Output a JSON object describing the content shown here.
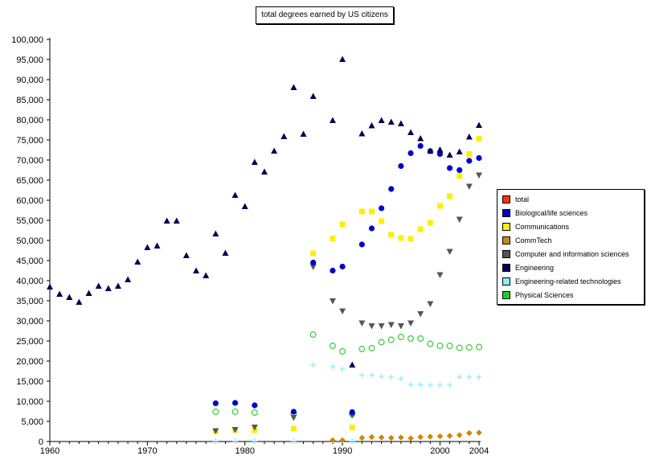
{
  "chart_data": {
    "type": "scatter",
    "title": "total degrees earned by US citizens",
    "xlabel": "",
    "ylabel": "",
    "xlim": [
      1960,
      2004
    ],
    "ylim": [
      0,
      100000
    ],
    "x_ticks": [
      "1960",
      "1970",
      "1980",
      "1990",
      "2000",
      "2004"
    ],
    "x_tick_values": [
      1960,
      1970,
      1980,
      1990,
      2000,
      2004
    ],
    "y_ticks": [
      "0",
      "5,000",
      "10,000",
      "15,000",
      "20,000",
      "25,000",
      "30,000",
      "35,000",
      "40,000",
      "45,000",
      "50,000",
      "55,000",
      "60,000",
      "65,000",
      "70,000",
      "75,000",
      "80,000",
      "85,000",
      "90,000",
      "95,000",
      "100,000"
    ],
    "y_tick_values": [
      0,
      5000,
      10000,
      15000,
      20000,
      25000,
      30000,
      35000,
      40000,
      45000,
      50000,
      55000,
      60000,
      65000,
      70000,
      75000,
      80000,
      85000,
      90000,
      95000,
      100000
    ],
    "legend_position": "right",
    "series": [
      {
        "name": "total",
        "color": "#ff3300",
        "marker": "square",
        "points": []
      },
      {
        "name": "Biological/life sciences",
        "color": "#0000cc",
        "marker": "circle",
        "points": [
          [
            1977,
            9500
          ],
          [
            1979,
            9600
          ],
          [
            1981,
            9000
          ],
          [
            1985,
            7400
          ],
          [
            1987,
            44500
          ],
          [
            1989,
            42500
          ],
          [
            1990,
            43500
          ],
          [
            1991,
            7300
          ],
          [
            1992,
            49000
          ],
          [
            1993,
            53000
          ],
          [
            1994,
            58000
          ],
          [
            1995,
            62800
          ],
          [
            1996,
            68500
          ],
          [
            1997,
            71700
          ],
          [
            1998,
            73500
          ],
          [
            1999,
            72200
          ],
          [
            2000,
            71500
          ],
          [
            2001,
            68000
          ],
          [
            2002,
            67500
          ],
          [
            2003,
            69800
          ],
          [
            2004,
            70500
          ]
        ]
      },
      {
        "name": "Communications",
        "color": "#ffee00",
        "marker": "square",
        "points": [
          [
            1977,
            2600
          ],
          [
            1979,
            2900
          ],
          [
            1981,
            2800
          ],
          [
            1985,
            3200
          ],
          [
            1987,
            46800
          ],
          [
            1989,
            50500
          ],
          [
            1990,
            54000
          ],
          [
            1991,
            3500
          ],
          [
            1992,
            57200
          ],
          [
            1993,
            57200
          ],
          [
            1994,
            54800
          ],
          [
            1995,
            51400
          ],
          [
            1996,
            50600
          ],
          [
            1997,
            50400
          ],
          [
            1998,
            52800
          ],
          [
            1999,
            54400
          ],
          [
            2000,
            58600
          ],
          [
            2001,
            61000
          ],
          [
            2002,
            66000
          ],
          [
            2003,
            71500
          ],
          [
            2004,
            75300
          ]
        ]
      },
      {
        "name": "CommTech",
        "color": "#cc8800",
        "marker": "diamond",
        "points": [
          [
            1989,
            300
          ],
          [
            1990,
            300
          ],
          [
            1992,
            900
          ],
          [
            1993,
            1100
          ],
          [
            1994,
            1000
          ],
          [
            1995,
            900
          ],
          [
            1996,
            1000
          ],
          [
            1997,
            800
          ],
          [
            1998,
            1100
          ],
          [
            1999,
            1200
          ],
          [
            2000,
            1300
          ],
          [
            2001,
            1400
          ],
          [
            2002,
            1600
          ],
          [
            2003,
            2100
          ],
          [
            2004,
            2200
          ]
        ]
      },
      {
        "name": "Computer and information sciences",
        "color": "#555555",
        "marker": "triangle-down",
        "points": [
          [
            1977,
            2700
          ],
          [
            1979,
            3000
          ],
          [
            1981,
            3600
          ],
          [
            1985,
            6000
          ],
          [
            1987,
            43500
          ],
          [
            1989,
            35000
          ],
          [
            1990,
            32500
          ],
          [
            1991,
            6600
          ],
          [
            1992,
            29500
          ],
          [
            1993,
            28800
          ],
          [
            1994,
            28800
          ],
          [
            1995,
            29100
          ],
          [
            1996,
            28800
          ],
          [
            1997,
            29500
          ],
          [
            1998,
            31800
          ],
          [
            1999,
            34300
          ],
          [
            2000,
            41500
          ],
          [
            2001,
            47300
          ],
          [
            2002,
            55300
          ],
          [
            2003,
            63500
          ],
          [
            2004,
            66300
          ]
        ]
      },
      {
        "name": "Engineering",
        "color": "#000055",
        "marker": "triangle-up",
        "points": [
          [
            1960,
            38400
          ],
          [
            1961,
            36600
          ],
          [
            1962,
            35800
          ],
          [
            1963,
            34600
          ],
          [
            1964,
            36800
          ],
          [
            1965,
            38600
          ],
          [
            1966,
            38000
          ],
          [
            1967,
            38600
          ],
          [
            1968,
            40200
          ],
          [
            1969,
            44600
          ],
          [
            1970,
            48200
          ],
          [
            1971,
            48600
          ],
          [
            1972,
            54800
          ],
          [
            1973,
            54800
          ],
          [
            1974,
            46200
          ],
          [
            1975,
            42400
          ],
          [
            1976,
            41200
          ],
          [
            1977,
            51600
          ],
          [
            1978,
            46800
          ],
          [
            1979,
            61200
          ],
          [
            1980,
            58400
          ],
          [
            1981,
            69400
          ],
          [
            1982,
            67000
          ],
          [
            1983,
            72200
          ],
          [
            1984,
            75800
          ],
          [
            1985,
            88000
          ],
          [
            1986,
            76400
          ],
          [
            1987,
            85800
          ],
          [
            1989,
            79800
          ],
          [
            1990,
            95000
          ],
          [
            1991,
            19000
          ],
          [
            1992,
            76500
          ],
          [
            1993,
            78500
          ],
          [
            1994,
            79800
          ],
          [
            1995,
            79400
          ],
          [
            1996,
            79000
          ],
          [
            1997,
            76800
          ],
          [
            1998,
            75300
          ],
          [
            1999,
            72200
          ],
          [
            2000,
            72500
          ],
          [
            2001,
            71200
          ],
          [
            2002,
            72000
          ],
          [
            2003,
            75700
          ],
          [
            2004,
            78600
          ]
        ]
      },
      {
        "name": "Engineering-related technologies",
        "color": "#88eeff",
        "marker": "plus",
        "points": [
          [
            1977,
            100
          ],
          [
            1979,
            100
          ],
          [
            1981,
            100
          ],
          [
            1985,
            100
          ],
          [
            1987,
            19000
          ],
          [
            1989,
            18600
          ],
          [
            1990,
            18000
          ],
          [
            1991,
            100
          ],
          [
            1992,
            16500
          ],
          [
            1993,
            16500
          ],
          [
            1994,
            16200
          ],
          [
            1995,
            16000
          ],
          [
            1996,
            15600
          ],
          [
            1997,
            14200
          ],
          [
            1998,
            14200
          ],
          [
            1999,
            14000
          ],
          [
            2000,
            14000
          ],
          [
            2001,
            14000
          ],
          [
            2002,
            16000
          ],
          [
            2003,
            16000
          ],
          [
            2004,
            16000
          ]
        ]
      },
      {
        "name": "Physical Sciences",
        "color": "#22cc22",
        "marker": "open-circle",
        "points": [
          [
            1977,
            7400
          ],
          [
            1979,
            7400
          ],
          [
            1981,
            7200
          ],
          [
            1985,
            7000
          ],
          [
            1987,
            26600
          ],
          [
            1989,
            23800
          ],
          [
            1990,
            22400
          ],
          [
            1991,
            6800
          ],
          [
            1992,
            23000
          ],
          [
            1993,
            23200
          ],
          [
            1994,
            24700
          ],
          [
            1995,
            25300
          ],
          [
            1996,
            26000
          ],
          [
            1997,
            25600
          ],
          [
            1998,
            25600
          ],
          [
            1999,
            24300
          ],
          [
            2000,
            23800
          ],
          [
            2001,
            23800
          ],
          [
            2002,
            23300
          ],
          [
            2003,
            23400
          ],
          [
            2004,
            23500
          ]
        ]
      }
    ]
  }
}
